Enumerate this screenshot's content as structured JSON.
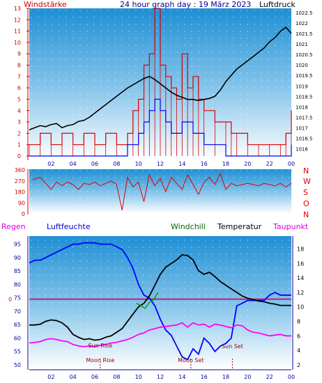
{
  "header": {
    "left_label": "Windstärke",
    "title": "24 hour graph day : 19 März 2023",
    "right_label": "Luftdruck"
  },
  "middle": {
    "right_letters": [
      "N",
      "W",
      "S",
      "O",
      "N"
    ]
  },
  "bottom_header": {
    "regen": "Regen",
    "luftfeuchte": "Luftfeuchte",
    "windchill": "Windchill",
    "temperatur": "Temperatur",
    "taupunkt": "Taupunkt"
  },
  "colors": {
    "regen": "#dd00dd",
    "luftfeuchte": "#0000cc",
    "windchill": "#006600",
    "temperatur": "#000000",
    "taupunkt": "#dd00dd",
    "wind": "#dd0000",
    "gust": "#0000ee",
    "pressure": "#000000",
    "humidity": "#0000ff",
    "dewpoint": "#ff00ff",
    "rain_line": "#cc0066",
    "axis_left": "#cc0000",
    "axis_blue": "#000099"
  },
  "chart_data": [
    {
      "type": "line",
      "title": "24 hour graph day : 19 März 2023",
      "x_ticks": [
        "02",
        "04",
        "06",
        "08",
        "10",
        "12",
        "14",
        "16",
        "18",
        "20",
        "22",
        "00"
      ],
      "xlim_hours": [
        0,
        24
      ],
      "left_axis": {
        "label": "Windstärke",
        "ticks": [
          0,
          1,
          2,
          3,
          4,
          5,
          6,
          7,
          8,
          9,
          10,
          11,
          12,
          13
        ],
        "ylim": [
          0,
          13
        ]
      },
      "right_axis": {
        "label": "Luftdruck",
        "ticks": [
          "1016",
          "1016.5",
          "1017",
          "1017.5",
          "1018",
          "1018.5",
          "1019",
          "1019.5",
          "1020",
          "1020.5",
          "1021",
          "1021.5",
          "1022",
          "1022.5"
        ],
        "ylim": [
          1015.65,
          1022.7
        ]
      },
      "series": [
        {
          "name": "Luftdruck",
          "axis": "right",
          "x": [
            0.0,
            0.5,
            1.0,
            1.5,
            2.0,
            2.5,
            3.0,
            3.5,
            4.0,
            4.5,
            5.0,
            5.5,
            6.0,
            6.5,
            7.0,
            7.5,
            8.0,
            8.5,
            9.0,
            9.5,
            10.0,
            10.5,
            11.0,
            11.5,
            12.0,
            12.5,
            13.0,
            13.5,
            14.0,
            14.5,
            15.0,
            15.5,
            16.0,
            16.5,
            17.0,
            17.5,
            18.0,
            18.5,
            19.0,
            19.5,
            20.0,
            20.5,
            21.0,
            21.5,
            22.0,
            22.5,
            23.0,
            23.5,
            24.0
          ],
          "y": [
            1016.9,
            1017.0,
            1017.1,
            1017.05,
            1017.15,
            1017.2,
            1017.0,
            1017.1,
            1017.15,
            1017.3,
            1017.35,
            1017.5,
            1017.7,
            1017.9,
            1018.1,
            1018.3,
            1018.5,
            1018.7,
            1018.9,
            1019.05,
            1019.2,
            1019.35,
            1019.45,
            1019.3,
            1019.1,
            1018.9,
            1018.7,
            1018.55,
            1018.45,
            1018.35,
            1018.35,
            1018.3,
            1018.35,
            1018.4,
            1018.5,
            1018.8,
            1019.2,
            1019.5,
            1019.8,
            1020.0,
            1020.2,
            1020.4,
            1020.6,
            1020.8,
            1021.1,
            1021.3,
            1021.6,
            1021.8,
            1021.5
          ]
        },
        {
          "name": "Windstärke",
          "axis": "left",
          "x": [
            0,
            1,
            2,
            3,
            4,
            5,
            6,
            7,
            8,
            9,
            9.5,
            10,
            10.5,
            11,
            11.5,
            12,
            12.5,
            13,
            13.5,
            14,
            14.5,
            15,
            15.5,
            16,
            17,
            18,
            18.5,
            19,
            20,
            21,
            22,
            23,
            23.5,
            24
          ],
          "y": [
            1,
            2,
            1,
            2,
            1,
            2,
            1,
            2,
            1,
            2,
            4,
            5,
            8,
            9,
            13,
            8,
            7,
            6,
            5,
            9,
            6,
            7,
            5,
            4,
            3,
            3,
            2,
            2,
            1,
            1,
            1,
            1,
            2,
            4
          ]
        },
        {
          "name": "Böen",
          "axis": "left",
          "x": [
            0,
            8,
            9,
            10,
            10.5,
            11,
            11.5,
            12,
            12.5,
            13,
            14,
            15,
            16,
            17,
            18,
            19,
            20,
            24
          ],
          "y": [
            0,
            0,
            1,
            2,
            3,
            4,
            5,
            4,
            3,
            2,
            3,
            2,
            1,
            1,
            0,
            0,
            0,
            1
          ]
        }
      ]
    },
    {
      "type": "line",
      "left_axis": {
        "ticks": [
          0,
          90,
          180,
          270,
          360
        ],
        "ylim": [
          0,
          360
        ]
      },
      "right_letters": [
        "N",
        "W",
        "S",
        "O",
        "N"
      ],
      "series": [
        {
          "name": "Windrichtung",
          "x": [
            0.3,
            1,
            1.5,
            2,
            2.5,
            3,
            3.5,
            4,
            4.5,
            5,
            5.5,
            6,
            6.5,
            7,
            7.5,
            8,
            8.5,
            9,
            9.5,
            10,
            10.5,
            11,
            11.5,
            12,
            12.5,
            13,
            13.5,
            14,
            14.5,
            15,
            15.5,
            16,
            16.5,
            17,
            17.5,
            18,
            18.5,
            19,
            19.5,
            20,
            20.5,
            21,
            21.5,
            22,
            22.5,
            23,
            23.5,
            24
          ],
          "y": [
            280,
            300,
            250,
            200,
            260,
            230,
            260,
            240,
            200,
            250,
            240,
            260,
            230,
            250,
            270,
            240,
            30,
            300,
            220,
            260,
            100,
            320,
            230,
            290,
            180,
            300,
            250,
            200,
            320,
            240,
            160,
            260,
            300,
            240,
            330,
            200,
            250,
            230,
            240,
            250,
            240,
            230,
            250,
            240,
            230,
            250,
            220,
            250
          ]
        }
      ]
    },
    {
      "type": "line",
      "left_axis": {
        "label": "Luftfeuchte",
        "ticks": [
          50,
          55,
          60,
          65,
          70,
          75,
          80,
          85,
          90,
          95
        ],
        "ylim": [
          48.7,
          97.5
        ]
      },
      "right_axis": {
        "label": "Temperatur",
        "ticks": [
          2,
          4,
          6,
          8,
          10,
          12,
          14,
          16,
          18
        ],
        "ylim": [
          1.5,
          19.6
        ]
      },
      "rain_label": "0",
      "annotations": [
        "Sun Rise",
        "Moon Rise",
        "Moon Set",
        "Sun Set"
      ],
      "series": [
        {
          "name": "Luftfeuchte",
          "axis": "left",
          "x": [
            0,
            0.5,
            1,
            1.5,
            2,
            2.5,
            3,
            3.5,
            4,
            4.5,
            5,
            5.5,
            6,
            6.5,
            7,
            7.5,
            8,
            8.5,
            9,
            9.5,
            10,
            10.5,
            11,
            11.5,
            12,
            12.5,
            13,
            13.5,
            14,
            14.5,
            15,
            15.5,
            16,
            16.5,
            17,
            17.5,
            18,
            18.5,
            19,
            19.5,
            20,
            20.5,
            21,
            21.5,
            22,
            22.5,
            23,
            23.5,
            24
          ],
          "y": [
            88,
            89,
            89,
            90,
            91,
            92,
            93,
            94,
            95,
            95,
            95.5,
            95.5,
            95.5,
            95,
            95,
            95,
            94,
            93,
            90,
            86,
            80,
            76,
            75,
            72,
            67,
            63,
            61,
            57,
            53,
            52,
            56,
            54,
            60,
            58,
            55,
            57,
            58,
            60,
            72,
            73,
            74,
            74,
            74,
            74,
            76,
            77,
            76,
            76,
            76
          ]
        },
        {
          "name": "Temperatur",
          "axis": "right",
          "x": [
            0,
            0.5,
            1,
            1.5,
            2,
            2.5,
            3,
            3.5,
            4,
            4.5,
            5,
            5.5,
            6,
            6.5,
            7,
            7.5,
            8,
            8.5,
            9,
            9.5,
            10,
            10.5,
            11,
            11.5,
            12,
            12.5,
            13,
            13.5,
            14,
            14.5,
            15,
            15.5,
            16,
            16.5,
            17,
            17.5,
            18,
            18.5,
            19,
            19.5,
            20,
            20.5,
            21,
            21.5,
            22,
            22.5,
            23,
            23.5,
            24
          ],
          "y": [
            7.5,
            7.5,
            7.6,
            8,
            8.2,
            8.1,
            7.8,
            7.2,
            6.2,
            5.8,
            5.5,
            5.6,
            5.4,
            5.5,
            5.8,
            6,
            6.5,
            7,
            8,
            9,
            10,
            10.5,
            11.5,
            13,
            14.5,
            15.5,
            16,
            16.5,
            17.2,
            17.1,
            16.5,
            15,
            14.5,
            14.8,
            14.2,
            13.5,
            13,
            12.5,
            12,
            11.5,
            11.2,
            11,
            10.8,
            10.7,
            10.5,
            10.4,
            10.2,
            10.2,
            10.2
          ]
        },
        {
          "name": "Windchill",
          "axis": "right",
          "x": [
            9.8,
            10.2,
            10.6,
            11,
            11.4,
            11.8
          ],
          "y": [
            10.5,
            10.2,
            9.8,
            10.6,
            11,
            12
          ]
        },
        {
          "name": "Taupunkt",
          "axis": "right",
          "x": [
            0,
            0.5,
            1,
            1.5,
            2,
            2.5,
            3,
            3.5,
            4,
            4.5,
            5,
            5.5,
            6,
            6.5,
            7,
            7.5,
            8,
            8.5,
            9,
            9.5,
            10,
            10.5,
            11,
            11.5,
            12,
            12.5,
            13,
            13.5,
            14,
            14.5,
            15,
            15.5,
            16,
            16.5,
            17,
            17.5,
            18,
            18.5,
            19,
            19.5,
            20,
            20.5,
            21,
            21.5,
            22,
            22.5,
            23,
            23.5,
            24
          ],
          "y": [
            5,
            5.1,
            5.2,
            5.5,
            5.6,
            5.5,
            5.3,
            5.2,
            4.8,
            4.6,
            4.5,
            4.6,
            4.5,
            4.7,
            4.8,
            5,
            5.1,
            5.3,
            5.5,
            5.8,
            6.2,
            6.4,
            6.8,
            7,
            7.2,
            7.3,
            7.4,
            7.5,
            7.8,
            7.2,
            7.8,
            7.5,
            7.6,
            7.2,
            7.6,
            7.5,
            7.3,
            7.1,
            7.5,
            7.4,
            6.8,
            6.5,
            6.4,
            6.2,
            6,
            6.1,
            6.2,
            6,
            6
          ]
        }
      ]
    }
  ]
}
